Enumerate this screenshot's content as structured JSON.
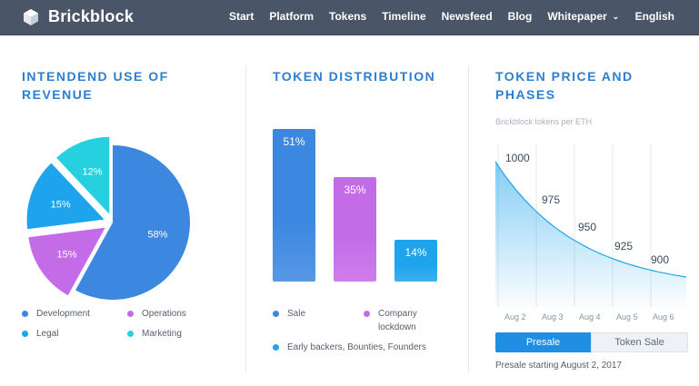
{
  "header": {
    "brand": "Brickblock",
    "nav": [
      {
        "label": "Start"
      },
      {
        "label": "Platform"
      },
      {
        "label": "Tokens"
      },
      {
        "label": "Timeline"
      },
      {
        "label": "Newsfeed"
      },
      {
        "label": "Blog"
      },
      {
        "label": "Whitepaper",
        "dropdown": true
      }
    ],
    "language": "English",
    "colors": {
      "bar": "#4b5568",
      "text": "#ffffff"
    }
  },
  "revenue": {
    "title": "INTENDEND USE OF REVENUE",
    "legend": [
      {
        "label": "Development",
        "color": "#3c88e0"
      },
      {
        "label": "Operations",
        "color": "#c46ce8"
      },
      {
        "label": "Legal",
        "color": "#1ea4ec"
      },
      {
        "label": "Marketing",
        "color": "#26d0df"
      }
    ]
  },
  "distribution": {
    "title": "TOKEN DISTRIBUTION",
    "legend": [
      {
        "label": "Sale",
        "color": "#3c88e0"
      },
      {
        "label": "Company lockdown",
        "color": "#c46ce8"
      },
      {
        "label": "Early backers, Bounties, Founders",
        "color": "#1ea4ec"
      }
    ]
  },
  "price": {
    "title": "TOKEN PRICE AND PHASES",
    "subtitle": "Brickblock tokens per ETH",
    "tabs": [
      {
        "label": "Presale",
        "active": true
      },
      {
        "label": "Token Sale",
        "active": false
      }
    ],
    "note": "Presale starting August 2, 2017"
  },
  "chart_data": [
    {
      "type": "pie",
      "title": "INTENDEND USE OF REVENUE",
      "slices": [
        {
          "label": "Development",
          "value": 58,
          "text": "58%",
          "color": "#3c88e0"
        },
        {
          "label": "Operations",
          "value": 15,
          "text": "15%",
          "color": "#c46ce8"
        },
        {
          "label": "Legal",
          "value": 15,
          "text": "15%",
          "color": "#1ea4ec"
        },
        {
          "label": "Marketing",
          "value": 12,
          "text": "12%",
          "color": "#26d0df"
        }
      ]
    },
    {
      "type": "bar",
      "title": "TOKEN DISTRIBUTION",
      "categories": [
        "Sale",
        "Company lockdown",
        "Early backers, Bounties, Founders"
      ],
      "values": [
        51,
        35,
        14
      ],
      "value_labels": [
        "51%",
        "35%",
        "14%"
      ],
      "colors": [
        "#3c88e0",
        "#c46ce8",
        "#1ea4ec"
      ],
      "ylim": [
        0,
        51
      ]
    },
    {
      "type": "area",
      "title": "TOKEN PRICE AND PHASES",
      "subtitle": "Brickblock tokens per ETH",
      "x": [
        "Aug 2",
        "Aug 3",
        "Aug 4",
        "Aug 5",
        "Aug 6"
      ],
      "y": [
        1000,
        975,
        950,
        925,
        900
      ],
      "color": "#1ea4ec",
      "grid": "vertical"
    }
  ]
}
